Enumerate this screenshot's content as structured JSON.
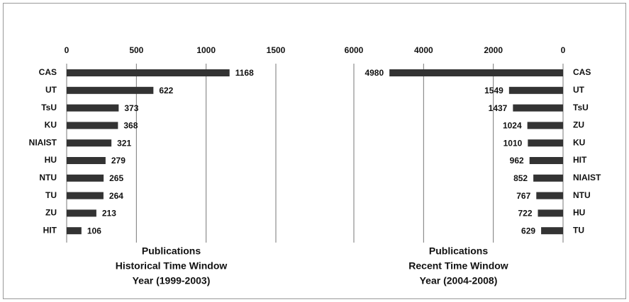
{
  "chart_data": [
    {
      "type": "hbar",
      "categories": [
        "CAS",
        "UT",
        "TsU",
        "KU",
        "NIAIST",
        "HU",
        "NTU",
        "TU",
        "ZU",
        "HIT"
      ],
      "values": [
        1168,
        622,
        373,
        368,
        321,
        279,
        265,
        264,
        213,
        106
      ],
      "color": "#333333",
      "xlim": [
        0,
        1500
      ],
      "xticks": [
        0,
        500,
        1000,
        1500
      ],
      "grid": true,
      "xlabel": [
        "Publications",
        "Historical Time Window",
        "Year (1999-2003)"
      ]
    },
    {
      "type": "hbar",
      "categories": [
        "CAS",
        "UT",
        "TsU",
        "ZU",
        "KU",
        "HIT",
        "NIAIST",
        "NTU",
        "HU",
        "TU"
      ],
      "values": [
        4980,
        1549,
        1437,
        1024,
        1010,
        962,
        852,
        767,
        722,
        629
      ],
      "color": "#333333",
      "xlim": [
        6000,
        0
      ],
      "xticks": [
        6000,
        4000,
        2000,
        0
      ],
      "grid": true,
      "xlabel": [
        "Publications",
        "Recent Time Window",
        "Year (2004-2008)"
      ]
    }
  ]
}
